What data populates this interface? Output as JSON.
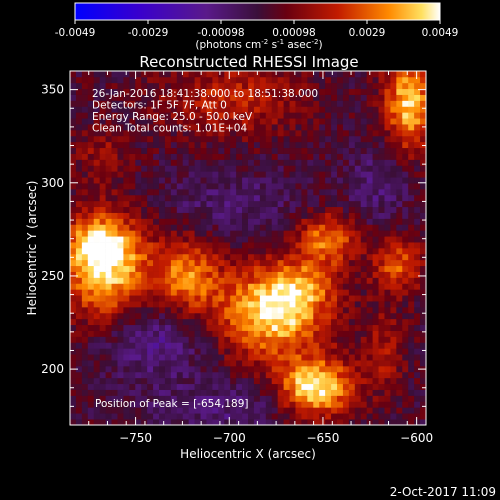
{
  "chart_data": {
    "type": "heatmap",
    "title": "Reconstructed RHESSI Image",
    "xlabel": "Heliocentric X (arcsec)",
    "ylabel": "Heliocentric Y (arcsec)",
    "xlim": [
      -785,
      -595
    ],
    "ylim": [
      170,
      360
    ],
    "xticks": [
      -750,
      -700,
      -650,
      -600
    ],
    "yticks": [
      200,
      250,
      300,
      350
    ],
    "grid": false,
    "colorbar": {
      "vmin": -0.0049,
      "vmax": 0.0049,
      "ticks": [
        "-0.0049",
        "-0.0029",
        "-0.00098",
        "0.00098",
        "0.0029",
        "0.0049"
      ],
      "unit_label": "(photons cm",
      "unit_exp1": "-2",
      "unit_mid": " s",
      "unit_exp2": "-1",
      "unit_mid2": " asec",
      "unit_exp3": "-2",
      "unit_end": ")"
    },
    "annotations": [
      "26-Jan-2016 18:41:38.000 to 18:51:38.000",
      "Detectors: 1F 5F 7F, Att 0",
      "Energy Range: 25.0 - 50.0 keV",
      "Clean    Total counts: 1.01E+04"
    ],
    "peak_label": "Position of Peak = [-654,189]",
    "peak": [
      -654,
      189
    ],
    "sources": [
      {
        "x": -766,
        "y": 256,
        "sx": 17,
        "sy": 20,
        "amp": 0.0044
      },
      {
        "x": -770,
        "y": 268,
        "sx": 10,
        "sy": 8,
        "amp": 0.002
      },
      {
        "x": -722,
        "y": 250,
        "sx": 12,
        "sy": 14,
        "amp": 0.0031
      },
      {
        "x": -678,
        "y": 230,
        "sx": 20,
        "sy": 17,
        "amp": 0.0043
      },
      {
        "x": -662,
        "y": 244,
        "sx": 14,
        "sy": 11,
        "amp": 0.002
      },
      {
        "x": -654,
        "y": 190,
        "sx": 14,
        "sy": 11,
        "amp": 0.0048
      },
      {
        "x": -648,
        "y": 270,
        "sx": 11,
        "sy": 10,
        "amp": 0.0031
      },
      {
        "x": -604,
        "y": 343,
        "sx": 9,
        "sy": 18,
        "amp": 0.0041
      },
      {
        "x": -610,
        "y": 256,
        "sx": 10,
        "sy": 10,
        "amp": 0.0026
      },
      {
        "x": -700,
        "y": 345,
        "sx": 28,
        "sy": 14,
        "amp": 0.0018
      },
      {
        "x": -768,
        "y": 316,
        "sx": 10,
        "sy": 10,
        "amp": 0.0012
      },
      {
        "x": -617,
        "y": 210,
        "sx": 8,
        "sy": 16,
        "amp": 0.0015
      }
    ],
    "negatives": [
      {
        "x": -740,
        "y": 215,
        "sx": 20,
        "sy": 14,
        "amp": -0.0016
      },
      {
        "x": -700,
        "y": 290,
        "sx": 30,
        "sy": 12,
        "amp": -0.001
      },
      {
        "x": -620,
        "y": 300,
        "sx": 12,
        "sy": 14,
        "amp": -0.0012
      },
      {
        "x": -700,
        "y": 180,
        "sx": 30,
        "sy": 10,
        "amp": -0.0012
      }
    ],
    "background_level": 0.0002,
    "noise_level": 0.0007
  },
  "footer": {
    "date": "2-Oct-2017 11:09"
  }
}
